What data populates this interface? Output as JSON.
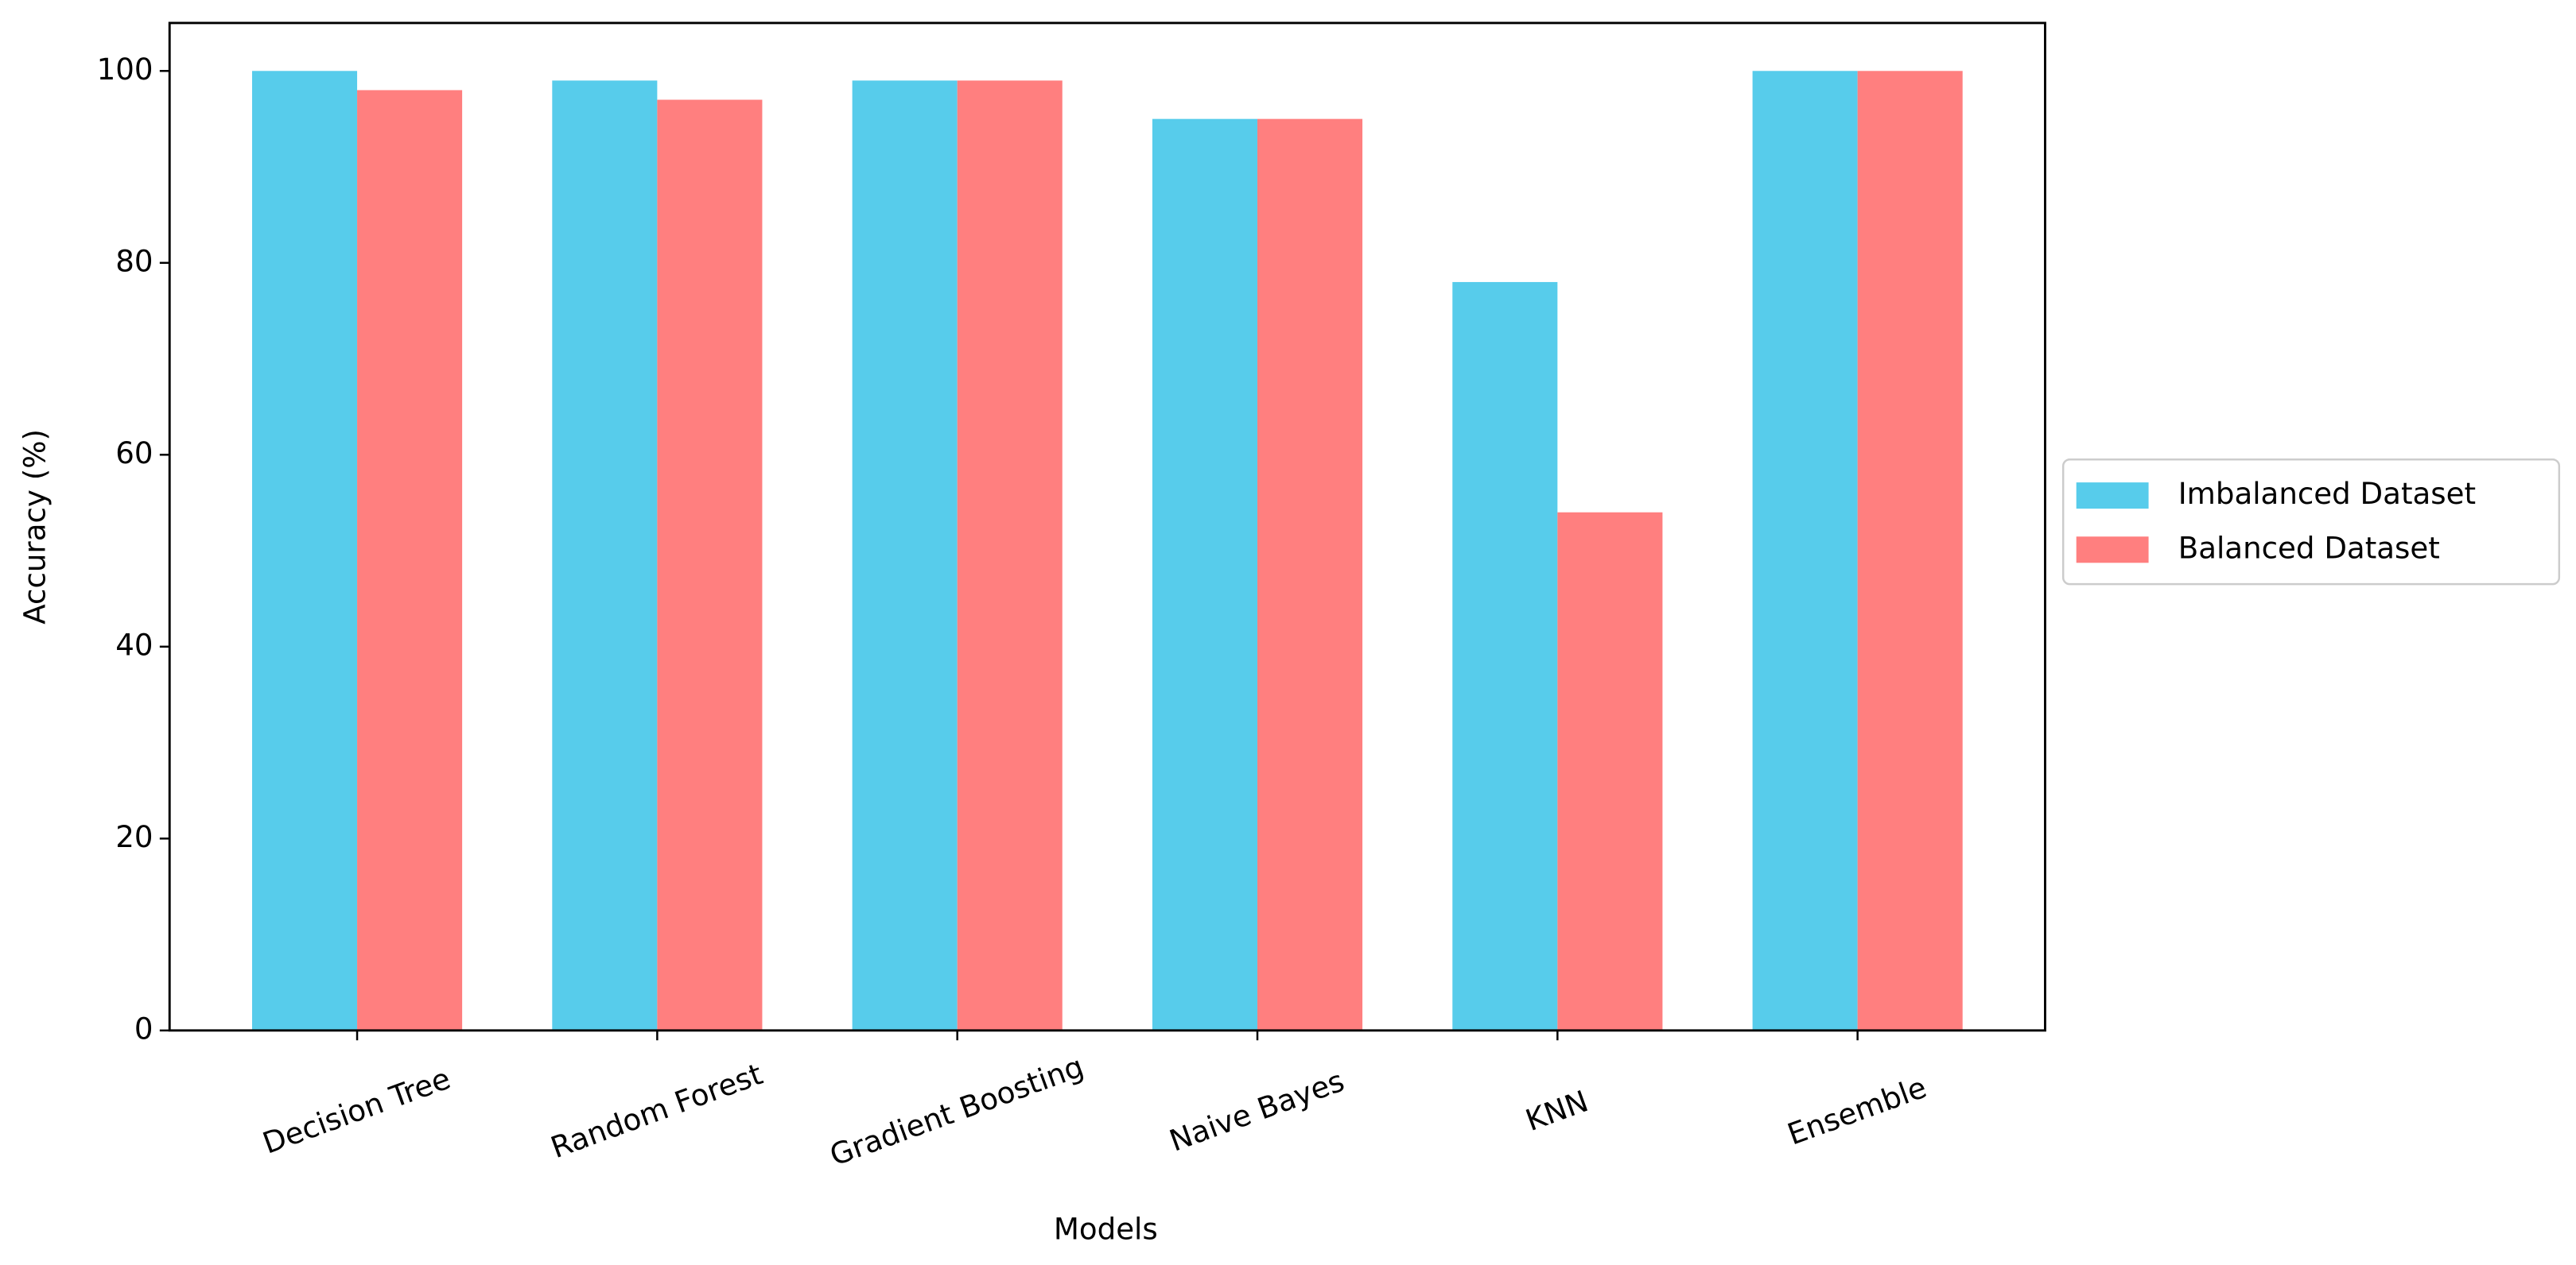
{
  "chart_data": {
    "type": "bar",
    "categories": [
      "Decision Tree",
      "Random Forest",
      "Gradient Boosting",
      "Naive Bayes",
      "KNN",
      "Ensemble"
    ],
    "series": [
      {
        "name": "Imbalanced Dataset",
        "color": "#57cceb",
        "values": [
          100,
          99,
          99,
          95,
          78,
          100
        ]
      },
      {
        "name": "Balanced Dataset",
        "color": "#ff7f7f",
        "values": [
          98,
          97,
          99,
          95,
          54,
          100
        ]
      }
    ],
    "x_label": "Models",
    "y_label": "Accuracy (%)",
    "ylim": [
      0,
      105
    ],
    "yticks": [
      0,
      20,
      40,
      60,
      80,
      100
    ],
    "grid": false,
    "legend": "outside right"
  }
}
